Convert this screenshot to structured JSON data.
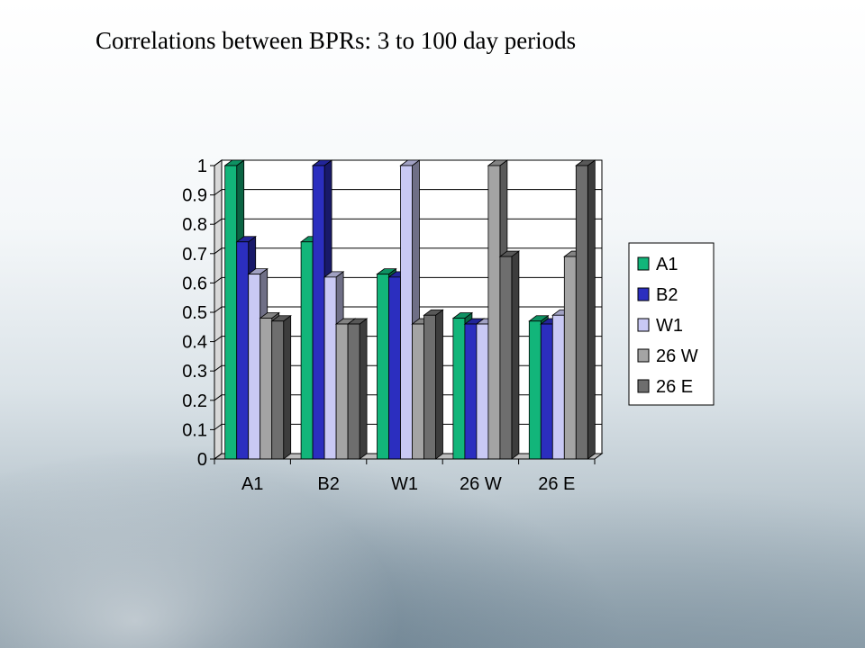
{
  "slide": {
    "title": "Correlations between BPRs: 3 to 100 day periods"
  },
  "chart_data": {
    "type": "bar",
    "title": "",
    "xlabel": "",
    "ylabel": "",
    "ylim": [
      0,
      1
    ],
    "yticks": [
      "0",
      "0.1",
      "0.2",
      "0.3",
      "0.4",
      "0.5",
      "0.6",
      "0.7",
      "0.8",
      "0.9",
      "1"
    ],
    "grid": true,
    "legend_position": "right",
    "categories": [
      "A1",
      "B2",
      "W1",
      "26 W",
      "26 E"
    ],
    "series": [
      {
        "name": "A1",
        "color": "#12b57a",
        "values": [
          1.0,
          0.74,
          0.63,
          0.48,
          0.47
        ]
      },
      {
        "name": "B2",
        "color": "#2b2ebf",
        "values": [
          0.74,
          1.0,
          0.62,
          0.46,
          0.46
        ]
      },
      {
        "name": "W1",
        "color": "#c9c9f4",
        "values": [
          0.63,
          0.62,
          1.0,
          0.46,
          0.49
        ]
      },
      {
        "name": "26 W",
        "color": "#a4a4a4",
        "values": [
          0.48,
          0.46,
          0.46,
          1.0,
          0.69
        ]
      },
      {
        "name": "26 E",
        "color": "#6e6e6e",
        "values": [
          0.47,
          0.46,
          0.49,
          0.69,
          1.0
        ]
      }
    ]
  }
}
